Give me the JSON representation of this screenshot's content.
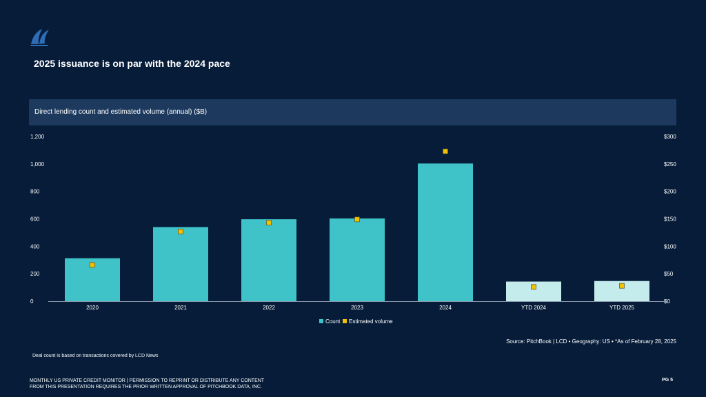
{
  "slide": {
    "title": "2025 issuance is on par with the 2024 pace",
    "chart_header": "Direct lending count and estimated volume (annual) ($B)",
    "source": "Source: PitchBook | LCD  •  Geography: US  •  *As of February 28, 2025",
    "note": "Deal count is based on transactions covered by LCD News",
    "footer_line1": "MONTHLY US PRIVATE CREDIT MONITOR | PERMISSION TO REPRINT OR DISTRIBUTE ANY CONTENT",
    "footer_line2": "FROM THIS PRESENTATION REQUIRES THE PRIOR WRITTEN APPROVAL OF PITCHBOOK DATA, INC.",
    "page": "PG 5"
  },
  "colors": {
    "background": "#061c39",
    "header_band": "#1d3a5e",
    "count_bar": "#3fc3c8",
    "count_bar_ytd": "#c4ecec",
    "volume_marker": "#f2c200",
    "logo": "#2e6db3"
  },
  "chart_data": {
    "type": "bar",
    "categories": [
      "2020",
      "2021",
      "2022",
      "2023",
      "2024",
      "YTD 2024",
      "YTD 2025"
    ],
    "series": [
      {
        "name": "Count",
        "axis": "left",
        "values": [
          313,
          540,
          597,
          603,
          1003,
          143,
          147
        ]
      },
      {
        "name": "Estimated volume",
        "axis": "right",
        "values": [
          66,
          127,
          143,
          149,
          273,
          26,
          28
        ]
      }
    ],
    "left_axis": {
      "ticks": [
        "1,200",
        "1,000",
        "800",
        "600",
        "400",
        "200",
        "0"
      ],
      "ylim": [
        0,
        1200
      ]
    },
    "right_axis": {
      "ticks": [
        "$300",
        "$250",
        "$200",
        "$150",
        "$100",
        "$50",
        "$0"
      ],
      "ylim": [
        0,
        300
      ]
    },
    "legend": [
      "Count",
      "Estimated volume"
    ],
    "legend_position": "bottom-center"
  }
}
